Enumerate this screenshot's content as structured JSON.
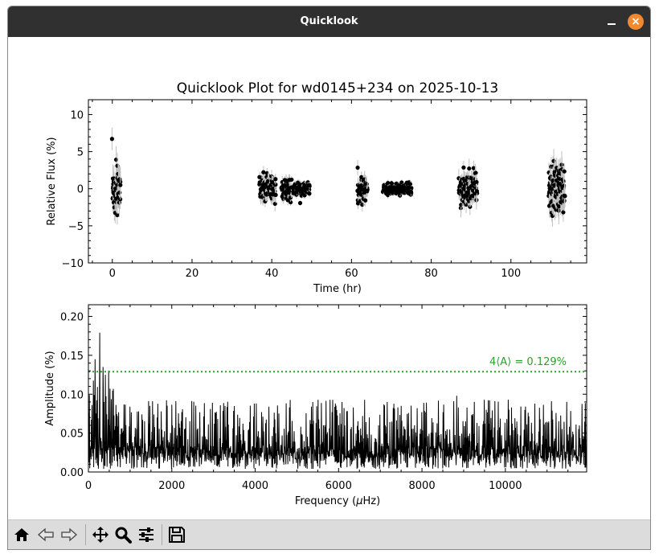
{
  "window": {
    "title": "Quicklook",
    "close_glyph": "×"
  },
  "toolbar": {
    "icons": [
      "home-icon",
      "back-icon",
      "forward-icon",
      "pan-icon",
      "zoom-icon",
      "configure-subplots-icon",
      "save-icon"
    ]
  },
  "chart_data": [
    {
      "type": "scatter",
      "title": "Quicklook Plot for wd0145+234 on 2025-10-13",
      "xlabel": "Time (hr)",
      "ylabel": "Relative Flux (%)",
      "xlim": [
        -6,
        119
      ],
      "ylim": [
        -10,
        12
      ],
      "xticks": [
        0,
        20,
        40,
        60,
        80,
        100
      ],
      "yticks": [
        -10,
        -5,
        0,
        5,
        10
      ],
      "error_bars": true,
      "marker_color": "#000000",
      "errorbar_color": "#c0c0c0",
      "segments": [
        {
          "start": 0.0,
          "end": 2.0,
          "scatter": 2.3
        },
        {
          "start": 37.0,
          "end": 41.0,
          "scatter": 1.2
        },
        {
          "start": 42.5,
          "end": 45.0,
          "scatter": 0.9
        },
        {
          "start": 45.5,
          "end": 49.5,
          "scatter": 0.6
        },
        {
          "start": 61.5,
          "end": 64.0,
          "scatter": 1.2
        },
        {
          "start": 68.0,
          "end": 75.0,
          "scatter": 0.5
        },
        {
          "start": 87.0,
          "end": 91.5,
          "scatter": 1.4
        },
        {
          "start": 109.5,
          "end": 113.5,
          "scatter": 2.0
        }
      ]
    },
    {
      "type": "line",
      "xlabel_parts": [
        "Frequency (",
        "μ",
        "Hz)"
      ],
      "ylabel": "Amplitude (%)",
      "xlim": [
        0,
        11950
      ],
      "ylim": [
        0,
        0.215
      ],
      "xticks": [
        0,
        2000,
        4000,
        6000,
        8000,
        10000
      ],
      "yticks": [
        "0.00",
        "0.05",
        "0.10",
        "0.15",
        "0.20"
      ],
      "line_color": "#000000",
      "peaks": [
        {
          "x": 160,
          "y": 0.145
        },
        {
          "x": 270,
          "y": 0.179
        },
        {
          "x": 350,
          "y": 0.135
        },
        {
          "x": 8830,
          "y": 0.098
        }
      ],
      "threshold": {
        "value": 0.129,
        "label": "4⟨A⟩ = 0.129%",
        "color": "#2ca02c",
        "style": "dotted"
      }
    }
  ]
}
